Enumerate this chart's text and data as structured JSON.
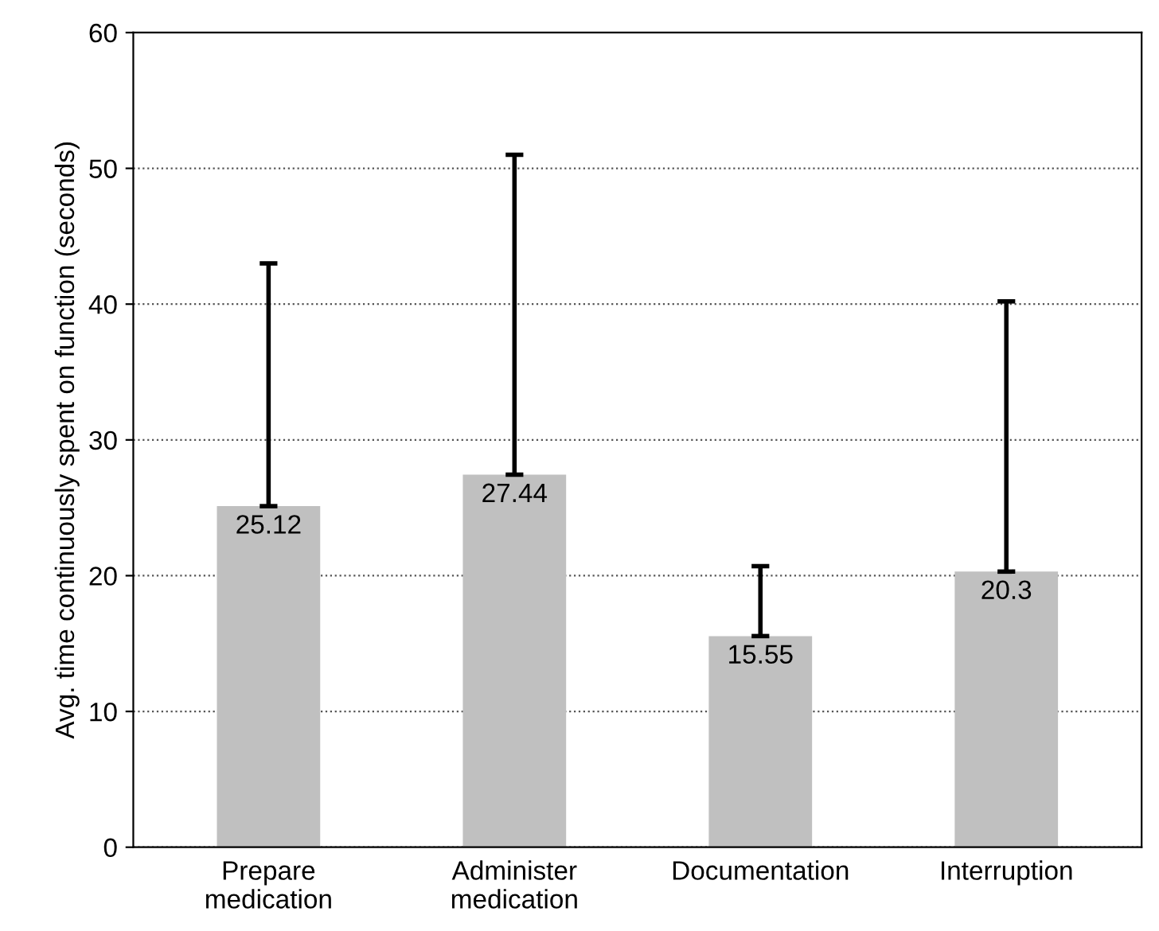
{
  "chart_data": {
    "type": "bar",
    "ylabel": "Avg. time continuously spent on function (seconds)",
    "categories": [
      "Prepare\nmedication",
      "Administer\nmedication",
      "Documentation",
      "Interruption"
    ],
    "values": [
      25.12,
      27.44,
      15.55,
      20.3
    ],
    "errors": [
      [
        25.12,
        43.0
      ],
      [
        27.44,
        51.0
      ],
      [
        15.55,
        20.7
      ],
      [
        20.3,
        40.2
      ]
    ],
    "color": "#c0c0c0",
    "ylim": [
      0,
      60
    ],
    "yticks": [
      0,
      10,
      20,
      30,
      40,
      50,
      60
    ],
    "grid": "y",
    "data_labels": true
  }
}
